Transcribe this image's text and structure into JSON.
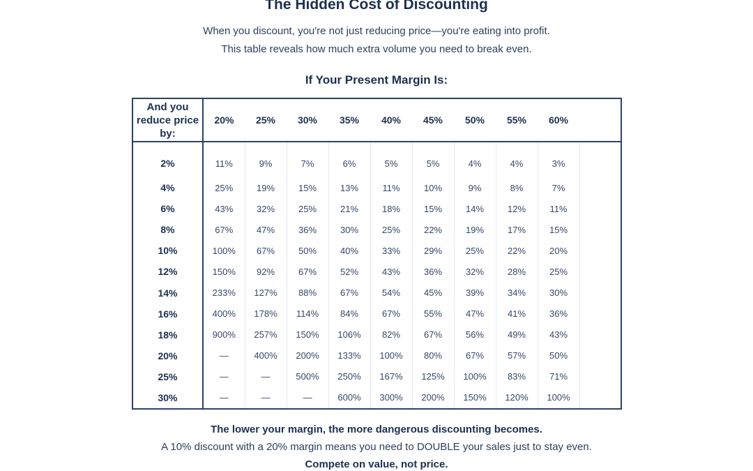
{
  "title": "The Hidden Cost of Discounting",
  "intro": {
    "line1": "When you discount, you're not just reducing price—you're eating into profit.",
    "line2": "This table reveals how much extra volume you need to break even."
  },
  "margin_heading": "If Your Present Margin Is:",
  "table": {
    "corner_label": "And you reduce price by:",
    "margins": [
      "20%",
      "25%",
      "30%",
      "35%",
      "40%",
      "45%",
      "50%",
      "55%",
      "60%"
    ],
    "rows": [
      {
        "reduction": "2%",
        "values": [
          "11%",
          "9%",
          "7%",
          "6%",
          "5%",
          "5%",
          "4%",
          "4%",
          "3%"
        ]
      },
      {
        "reduction": "4%",
        "values": [
          "25%",
          "19%",
          "15%",
          "13%",
          "11%",
          "10%",
          "9%",
          "8%",
          "7%"
        ]
      },
      {
        "reduction": "6%",
        "values": [
          "43%",
          "32%",
          "25%",
          "21%",
          "18%",
          "15%",
          "14%",
          "12%",
          "11%"
        ]
      },
      {
        "reduction": "8%",
        "values": [
          "67%",
          "47%",
          "36%",
          "30%",
          "25%",
          "22%",
          "19%",
          "17%",
          "15%"
        ]
      },
      {
        "reduction": "10%",
        "values": [
          "100%",
          "67%",
          "50%",
          "40%",
          "33%",
          "29%",
          "25%",
          "22%",
          "20%"
        ]
      },
      {
        "reduction": "12%",
        "values": [
          "150%",
          "92%",
          "67%",
          "52%",
          "43%",
          "36%",
          "32%",
          "28%",
          "25%"
        ]
      },
      {
        "reduction": "14%",
        "values": [
          "233%",
          "127%",
          "88%",
          "67%",
          "54%",
          "45%",
          "39%",
          "34%",
          "30%"
        ]
      },
      {
        "reduction": "16%",
        "values": [
          "400%",
          "178%",
          "114%",
          "84%",
          "67%",
          "55%",
          "47%",
          "41%",
          "36%"
        ]
      },
      {
        "reduction": "18%",
        "values": [
          "900%",
          "257%",
          "150%",
          "106%",
          "82%",
          "67%",
          "56%",
          "49%",
          "43%"
        ]
      },
      {
        "reduction": "20%",
        "values": [
          "—",
          "400%",
          "200%",
          "133%",
          "100%",
          "80%",
          "67%",
          "57%",
          "50%"
        ]
      },
      {
        "reduction": "25%",
        "values": [
          "—",
          "—",
          "500%",
          "250%",
          "167%",
          "125%",
          "100%",
          "83%",
          "71%"
        ]
      },
      {
        "reduction": "30%",
        "values": [
          "—",
          "—",
          "—",
          "600%",
          "300%",
          "200%",
          "150%",
          "120%",
          "100%"
        ]
      }
    ]
  },
  "footer": {
    "line1": "The lower your margin, the more dangerous discounting becomes.",
    "line2": "A 10% discount with a 20% margin means you need to DOUBLE your sales just to stay even.",
    "line3": "Compete on value, not price."
  }
}
